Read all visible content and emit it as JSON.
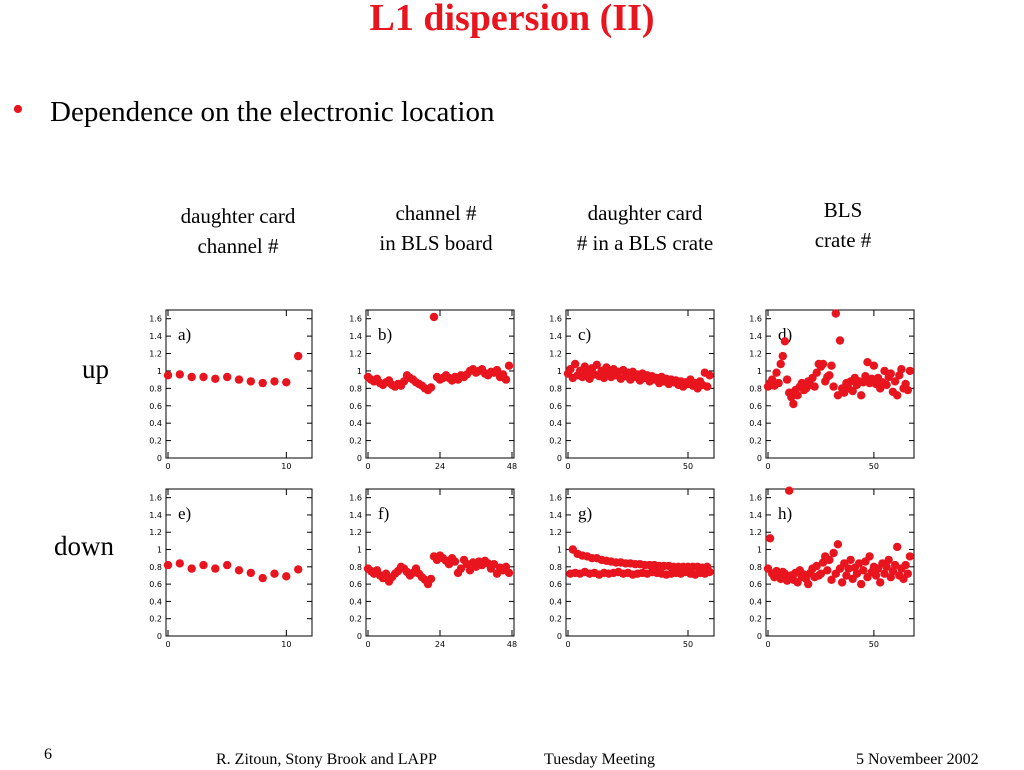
{
  "slide": {
    "title": "L1 dispersion (II)",
    "bullet": "Dependence on the electronic location",
    "column_headers": [
      "daughter card\nchannel #",
      "channel #\nin BLS board",
      "daughter card\n# in a BLS crate",
      "BLS\ncrate #"
    ],
    "row_labels": [
      "up",
      "down"
    ],
    "footer": {
      "page_number": "6",
      "author": "R. Zitoun, Stony Brook and LAPP",
      "meeting": "Tuesday Meeting",
      "date": "5 Novembeer 2002"
    }
  },
  "colors": {
    "accent": "#e8141e",
    "marker": "#e8141e",
    "axes": "#000000"
  },
  "chart_data": [
    {
      "type": "scatter",
      "title": "a)",
      "ylim": [
        0,
        1.7
      ],
      "yticks": [
        "0",
        "0.2",
        "0.4",
        "0.6",
        "0.8",
        "1",
        "1.2",
        "1.4",
        "1.6"
      ],
      "xticks": [
        "0",
        "10"
      ],
      "xlim": [
        0,
        12
      ],
      "series": [
        {
          "x": [
            0,
            1,
            2,
            3,
            4,
            5,
            6,
            7,
            8,
            9,
            10,
            11
          ],
          "y": [
            0.95,
            0.96,
            0.93,
            0.93,
            0.91,
            0.93,
            0.9,
            0.88,
            0.86,
            0.88,
            0.87,
            1.17
          ]
        }
      ]
    },
    {
      "type": "scatter",
      "title": "b)",
      "ylim": [
        0,
        1.7
      ],
      "yticks": [
        "0",
        "0.2",
        "0.4",
        "0.6",
        "0.8",
        "1",
        "1.2",
        "1.4",
        "1.6"
      ],
      "xticks": [
        "0",
        "24",
        "48"
      ],
      "xlim": [
        0,
        48
      ],
      "series": [
        {
          "x": [
            0,
            1,
            2,
            3,
            4,
            5,
            6,
            7,
            8,
            9,
            10,
            11,
            12,
            13,
            14,
            15,
            16,
            17,
            18,
            19,
            20,
            21,
            22,
            23,
            24,
            25,
            26,
            27,
            28,
            29,
            30,
            31,
            32,
            33,
            34,
            35,
            36,
            37,
            38,
            39,
            40,
            41,
            42,
            43,
            44,
            45,
            46,
            47
          ],
          "y": [
            0.93,
            0.9,
            0.88,
            0.91,
            0.86,
            0.84,
            0.87,
            0.89,
            0.84,
            0.82,
            0.85,
            0.83,
            0.88,
            0.95,
            0.92,
            0.9,
            0.87,
            0.85,
            0.83,
            0.8,
            0.78,
            0.81,
            1.62,
            0.93,
            0.9,
            0.92,
            0.95,
            0.92,
            0.89,
            0.93,
            0.9,
            0.95,
            0.93,
            0.96,
            1.0,
            1.02,
            0.98,
            1.0,
            1.02,
            0.97,
            0.95,
            0.99,
            0.98,
            1.01,
            0.93,
            0.96,
            0.9,
            1.06
          ]
        }
      ]
    },
    {
      "type": "scatter",
      "title": "c)",
      "ylim": [
        0,
        1.7
      ],
      "yticks": [
        "0",
        "0.2",
        "0.4",
        "0.6",
        "0.8",
        "1",
        "1.2",
        "1.4",
        "1.6"
      ],
      "xticks": [
        "0",
        "50"
      ],
      "xlim": [
        0,
        60
      ],
      "series": [
        {
          "x": [
            0,
            1,
            2,
            3,
            4,
            5,
            6,
            7,
            8,
            9,
            10,
            11,
            12,
            13,
            14,
            15,
            16,
            17,
            18,
            19,
            20,
            21,
            22,
            23,
            24,
            25,
            26,
            27,
            28,
            29,
            30,
            31,
            32,
            33,
            34,
            35,
            36,
            37,
            38,
            39,
            40,
            41,
            42,
            43,
            44,
            45,
            46,
            47,
            48,
            49,
            50,
            51,
            52,
            53,
            54,
            55,
            56,
            57,
            58,
            59
          ],
          "y": [
            0.97,
            1.02,
            0.92,
            1.08,
            0.95,
            1.0,
            0.93,
            1.05,
            0.98,
            0.91,
            1.03,
            0.96,
            1.07,
            0.94,
            1.0,
            0.92,
            1.04,
            0.97,
            0.93,
            1.02,
            0.95,
            0.99,
            0.91,
            1.01,
            0.94,
            0.98,
            0.9,
            0.99,
            0.93,
            0.96,
            0.89,
            0.97,
            0.92,
            0.95,
            0.88,
            0.94,
            0.9,
            0.92,
            0.86,
            0.93,
            0.88,
            0.91,
            0.85,
            0.9,
            0.87,
            0.89,
            0.84,
            0.88,
            0.82,
            0.87,
            0.85,
            0.9,
            0.83,
            0.86,
            0.8,
            0.88,
            0.84,
            0.98,
            0.82,
            0.95
          ]
        }
      ]
    },
    {
      "type": "scatter",
      "title": "d)",
      "ylim": [
        0,
        1.7
      ],
      "yticks": [
        "0",
        "0.2",
        "0.4",
        "0.6",
        "0.8",
        "1",
        "1.2",
        "1.4",
        "1.6"
      ],
      "xticks": [
        "0",
        "50"
      ],
      "xlim": [
        0,
        68
      ],
      "series": [
        {
          "x": [
            0,
            1,
            2,
            3,
            4,
            5,
            6,
            7,
            8,
            9,
            10,
            11,
            12,
            13,
            14,
            15,
            16,
            17,
            18,
            19,
            20,
            21,
            22,
            23,
            24,
            25,
            26,
            27,
            28,
            29,
            30,
            31,
            32,
            33,
            34,
            35,
            36,
            37,
            38,
            39,
            40,
            41,
            42,
            43,
            44,
            45,
            46,
            47,
            48,
            49,
            50,
            51,
            52,
            53,
            54,
            55,
            56,
            57,
            58,
            59,
            60,
            61,
            62,
            63,
            64,
            65,
            66,
            67
          ],
          "y": [
            0.82,
            0.86,
            0.9,
            0.83,
            0.98,
            0.86,
            1.08,
            1.17,
            1.34,
            0.9,
            0.75,
            0.7,
            0.62,
            0.78,
            0.72,
            0.82,
            0.86,
            0.78,
            0.8,
            0.88,
            0.84,
            0.92,
            0.82,
            0.98,
            1.08,
            1.05,
            1.08,
            0.88,
            0.93,
            0.95,
            1.06,
            0.82,
            1.66,
            0.72,
            1.35,
            0.8,
            0.75,
            0.86,
            0.8,
            0.88,
            0.77,
            0.92,
            0.84,
            0.88,
            0.72,
            0.87,
            0.94,
            1.1,
            0.86,
            0.91,
            1.06,
            0.85,
            0.92,
            0.8,
            0.87,
            1.0,
            0.84,
            0.93,
            0.97,
            0.76,
            0.88,
            0.72,
            0.95,
            1.02,
            0.8,
            0.85,
            0.78,
            1.0
          ]
        }
      ]
    },
    {
      "type": "scatter",
      "title": "e)",
      "ylim": [
        0,
        1.7
      ],
      "yticks": [
        "0",
        "0.2",
        "0.4",
        "0.6",
        "0.8",
        "1",
        "1.2",
        "1.4",
        "1.6"
      ],
      "xticks": [
        "0",
        "10"
      ],
      "xlim": [
        0,
        12
      ],
      "series": [
        {
          "x": [
            0,
            1,
            2,
            3,
            4,
            5,
            6,
            7,
            8,
            9,
            10,
            11
          ],
          "y": [
            0.82,
            0.84,
            0.78,
            0.82,
            0.78,
            0.82,
            0.76,
            0.73,
            0.67,
            0.72,
            0.69,
            0.77
          ]
        }
      ]
    },
    {
      "type": "scatter",
      "title": "f)",
      "ylim": [
        0,
        1.7
      ],
      "yticks": [
        "0",
        "0.2",
        "0.4",
        "0.6",
        "0.8",
        "1",
        "1.2",
        "1.4",
        "1.6"
      ],
      "xticks": [
        "0",
        "24",
        "48"
      ],
      "xlim": [
        0,
        48
      ],
      "series": [
        {
          "x": [
            0,
            1,
            2,
            3,
            4,
            5,
            6,
            7,
            8,
            9,
            10,
            11,
            12,
            13,
            14,
            15,
            16,
            17,
            18,
            19,
            20,
            21,
            22,
            23,
            24,
            25,
            26,
            27,
            28,
            29,
            30,
            31,
            32,
            33,
            34,
            35,
            36,
            37,
            38,
            39,
            40,
            41,
            42,
            43,
            44,
            45,
            46,
            47
          ],
          "y": [
            0.78,
            0.75,
            0.72,
            0.76,
            0.7,
            0.67,
            0.72,
            0.63,
            0.68,
            0.72,
            0.75,
            0.8,
            0.78,
            0.74,
            0.7,
            0.73,
            0.78,
            0.72,
            0.68,
            0.65,
            0.6,
            0.66,
            0.92,
            0.88,
            0.93,
            0.9,
            0.87,
            0.83,
            0.9,
            0.86,
            0.73,
            0.78,
            0.88,
            0.83,
            0.76,
            0.85,
            0.8,
            0.86,
            0.82,
            0.87,
            0.84,
            0.78,
            0.83,
            0.72,
            0.79,
            0.76,
            0.8,
            0.73
          ]
        }
      ]
    },
    {
      "type": "scatter",
      "title": "g)",
      "ylim": [
        0,
        1.7
      ],
      "yticks": [
        "0",
        "0.2",
        "0.4",
        "0.6",
        "0.8",
        "1",
        "1.2",
        "1.4",
        "1.6"
      ],
      "xticks": [
        "0",
        "50"
      ],
      "xlim": [
        0,
        60
      ],
      "series": [
        {
          "name": "",
          "x": [
            2,
            4,
            6,
            8,
            10,
            12,
            14,
            16,
            18,
            20,
            22,
            24,
            26,
            28,
            30,
            32,
            34,
            36,
            38,
            40,
            42,
            44,
            46,
            48,
            50,
            52,
            54,
            56,
            58
          ],
          "y": [
            1.0,
            0.95,
            0.93,
            0.92,
            0.9,
            0.9,
            0.88,
            0.87,
            0.86,
            0.85,
            0.85,
            0.84,
            0.84,
            0.83,
            0.83,
            0.82,
            0.82,
            0.82,
            0.81,
            0.81,
            0.81,
            0.8,
            0.8,
            0.8,
            0.8,
            0.8,
            0.8,
            0.79,
            0.8
          ]
        },
        {
          "name": "",
          "x": [
            1,
            3,
            5,
            7,
            9,
            11,
            13,
            15,
            17,
            19,
            21,
            23,
            25,
            27,
            29,
            31,
            33,
            35,
            37,
            39,
            41,
            43,
            45,
            47,
            49,
            51,
            53,
            55,
            57,
            59
          ],
          "y": [
            0.72,
            0.73,
            0.72,
            0.74,
            0.72,
            0.73,
            0.71,
            0.73,
            0.72,
            0.73,
            0.74,
            0.72,
            0.73,
            0.71,
            0.72,
            0.73,
            0.72,
            0.74,
            0.73,
            0.72,
            0.71,
            0.72,
            0.73,
            0.72,
            0.74,
            0.72,
            0.71,
            0.73,
            0.72,
            0.74
          ]
        }
      ]
    },
    {
      "type": "scatter",
      "title": "h)",
      "ylim": [
        0,
        1.7
      ],
      "yticks": [
        "0",
        "0.2",
        "0.4",
        "0.6",
        "0.8",
        "1",
        "1.2",
        "1.4",
        "1.6"
      ],
      "xticks": [
        "0",
        "50"
      ],
      "xlim": [
        0,
        68
      ],
      "series": [
        {
          "x": [
            0,
            1,
            2,
            3,
            4,
            5,
            6,
            7,
            8,
            9,
            10,
            11,
            12,
            13,
            14,
            15,
            16,
            17,
            18,
            19,
            20,
            21,
            22,
            23,
            24,
            25,
            26,
            27,
            28,
            29,
            30,
            31,
            32,
            33,
            34,
            35,
            36,
            37,
            38,
            39,
            40,
            41,
            42,
            43,
            44,
            45,
            46,
            47,
            48,
            49,
            50,
            51,
            52,
            53,
            54,
            55,
            56,
            57,
            58,
            59,
            60,
            61,
            62,
            63,
            64,
            65,
            66,
            67
          ],
          "y": [
            0.78,
            1.13,
            0.72,
            0.68,
            0.75,
            0.7,
            0.66,
            0.74,
            0.72,
            0.64,
            1.68,
            0.7,
            0.65,
            0.73,
            0.62,
            0.76,
            0.68,
            0.71,
            0.66,
            0.6,
            0.73,
            0.78,
            0.68,
            0.81,
            0.7,
            0.72,
            0.85,
            0.92,
            0.76,
            0.88,
            0.65,
            0.96,
            0.72,
            1.06,
            0.78,
            0.62,
            0.84,
            0.7,
            0.78,
            0.88,
            0.66,
            0.79,
            0.72,
            0.84,
            0.6,
            0.76,
            0.86,
            0.68,
            0.92,
            0.74,
            0.8,
            0.7,
            0.78,
            0.62,
            0.84,
            0.72,
            0.8,
            0.88,
            0.68,
            0.75,
            0.82,
            1.03,
            0.7,
            0.78,
            0.66,
            0.82,
            0.72,
            0.92
          ]
        }
      ]
    }
  ]
}
